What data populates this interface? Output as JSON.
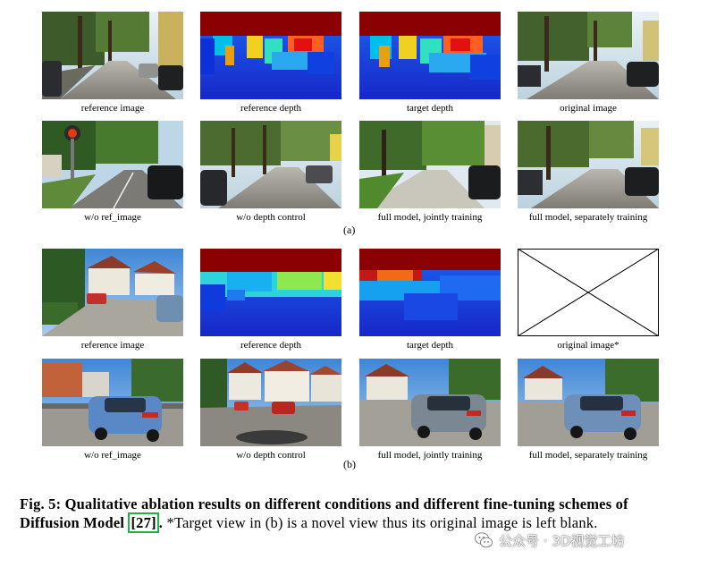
{
  "figure": {
    "panels": {
      "a": {
        "label": "(a)",
        "rows": [
          [
            "reference image",
            "reference depth",
            "target depth",
            "original image"
          ],
          [
            "w/o ref_image",
            "w/o depth control",
            "full model,  jointly training",
            "full model, separately  training"
          ]
        ]
      },
      "b": {
        "label": "(b)",
        "rows": [
          [
            "reference image",
            "reference depth",
            "target depth",
            "original image*"
          ],
          [
            "w/o ref_image",
            "w/o depth control",
            "full model,  jointly training",
            "full model, separately  training"
          ]
        ]
      }
    }
  },
  "caption": {
    "fig_label": "Fig. 5:",
    "bold_text": "Qualitative ablation results on different conditions and different fine-tuning schemes of Diffusion Model",
    "citation": "27",
    "after_citation": ".",
    "note": "*Target view in (b) is a novel view thus its original image is left blank."
  },
  "watermark": {
    "text": "公众号 · 3D视觉工坊",
    "icon": "wechat-logo-icon"
  },
  "colors": {
    "depth_far": "#8b0000",
    "depth_mid": "#00c8e0",
    "depth_near": "#1a3fdc",
    "citation_box": "#21b24b"
  }
}
